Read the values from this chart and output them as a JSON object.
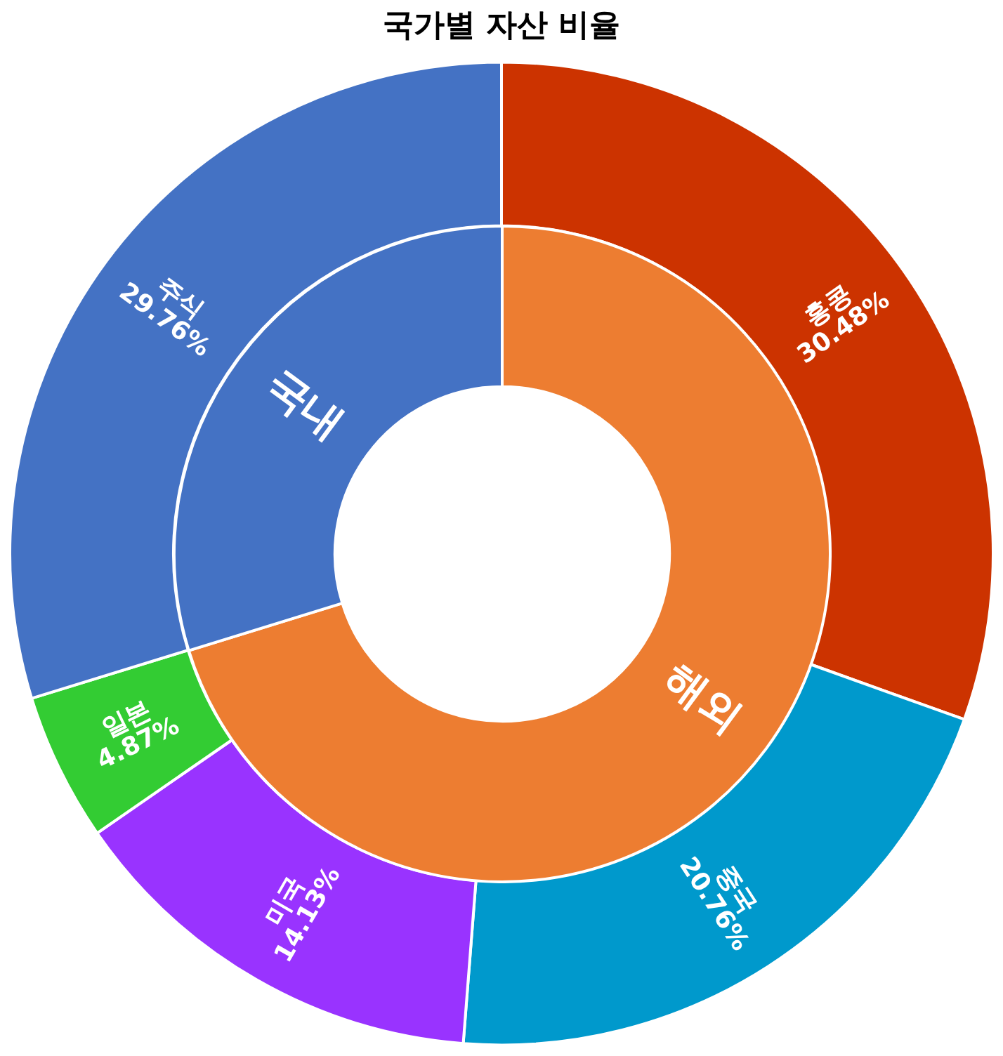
{
  "chart_data": [
    {
      "type": "donut",
      "title": "국가별 자산 비율",
      "legend": false,
      "categories": [
        "홍콩",
        "중국",
        "미국",
        "일본",
        "주식"
      ],
      "values": [
        30.48,
        20.76,
        14.13,
        4.87,
        29.76
      ],
      "colors": [
        "#cc3300",
        "#0099cc",
        "#9933ff",
        "#33cc33",
        "#4472c4"
      ],
      "value_labels": [
        "30.48%",
        "20.76%",
        "14.13%",
        "4.87%",
        "29.76%"
      ]
    },
    {
      "type": "donut",
      "legend": false,
      "categories": [
        "해외",
        "국내"
      ],
      "values": [
        70.24,
        29.76
      ],
      "colors": [
        "#ed7d31",
        "#4472c4"
      ]
    }
  ]
}
